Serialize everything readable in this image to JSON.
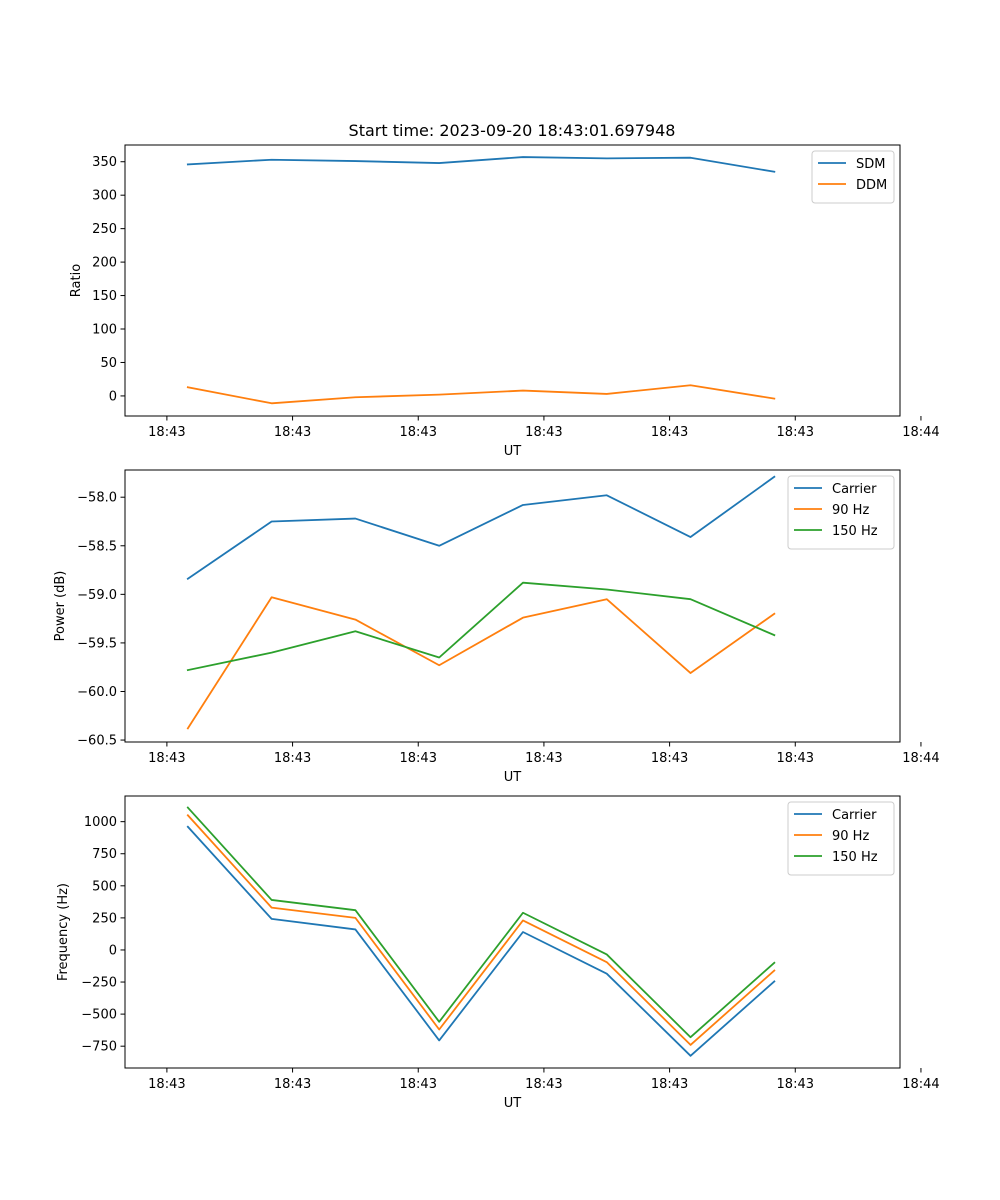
{
  "title": "Start time: 2023-09-20 18:43:01.697948",
  "colors": {
    "series1": "#1f77b4",
    "series2": "#ff7f0e",
    "series3": "#2ca02c"
  },
  "chart_data": [
    {
      "type": "line",
      "title": "Start time: 2023-09-20 18:43:01.697948",
      "xlabel": "UT",
      "ylabel": "Ratio",
      "xlim": [
        -0.5,
        8.75
      ],
      "ylim": [
        -30,
        375
      ],
      "x": [
        0.25,
        1.25,
        2.25,
        3.25,
        4.25,
        5.25,
        6.25,
        7.25
      ],
      "xticks": [
        0,
        1.5,
        3,
        4.5,
        6,
        7.5,
        9
      ],
      "xtick_labels": [
        "18:43",
        "18:43",
        "18:43",
        "18:43",
        "18:43",
        "18:43",
        "18:44"
      ],
      "yticks": [
        0,
        50,
        100,
        150,
        200,
        250,
        300,
        350
      ],
      "ytick_labels": [
        "0",
        "50",
        "100",
        "150",
        "200",
        "250",
        "300",
        "350"
      ],
      "legend_position": "top-right",
      "series": [
        {
          "name": "SDM",
          "values": [
            346,
            353,
            351,
            348,
            357,
            355,
            356,
            335
          ]
        },
        {
          "name": "DDM",
          "values": [
            13,
            -11,
            -2,
            2,
            8,
            3,
            16,
            -4
          ]
        }
      ]
    },
    {
      "type": "line",
      "title": "",
      "xlabel": "UT",
      "ylabel": "Power (dB)",
      "xlim": [
        -0.5,
        8.75
      ],
      "ylim": [
        -60.52,
        -57.72
      ],
      "x": [
        0.25,
        1.25,
        2.25,
        3.25,
        4.25,
        5.25,
        6.25,
        7.25
      ],
      "xticks": [
        0,
        1.5,
        3,
        4.5,
        6,
        7.5,
        9
      ],
      "xtick_labels": [
        "18:43",
        "18:43",
        "18:43",
        "18:43",
        "18:43",
        "18:43",
        "18:44"
      ],
      "yticks": [
        -60.5,
        -60.0,
        -59.5,
        -59.0,
        -58.5,
        -58.0
      ],
      "ytick_labels": [
        "−60.5",
        "−60.0",
        "−59.5",
        "−59.0",
        "−58.5",
        "−58.0"
      ],
      "legend_position": "top-right",
      "series": [
        {
          "name": "Carrier",
          "values": [
            -58.84,
            -58.25,
            -58.22,
            -58.5,
            -58.08,
            -57.98,
            -58.41,
            -57.79
          ]
        },
        {
          "name": "90 Hz",
          "values": [
            -60.38,
            -59.03,
            -59.26,
            -59.73,
            -59.24,
            -59.05,
            -59.81,
            -59.2
          ]
        },
        {
          "name": "150 Hz",
          "values": [
            -59.78,
            -59.6,
            -59.38,
            -59.65,
            -58.88,
            -58.95,
            -59.05,
            -59.42
          ]
        }
      ]
    },
    {
      "type": "line",
      "title": "",
      "xlabel": "UT",
      "ylabel": "Frequency (Hz)",
      "xlim": [
        -0.5,
        8.75
      ],
      "ylim": [
        -920,
        1200
      ],
      "x": [
        0.25,
        1.25,
        2.25,
        3.25,
        4.25,
        5.25,
        6.25,
        7.25
      ],
      "xticks": [
        0,
        1.5,
        3,
        4.5,
        6,
        7.5,
        9
      ],
      "xtick_labels": [
        "18:43",
        "18:43",
        "18:43",
        "18:43",
        "18:43",
        "18:43",
        "18:44"
      ],
      "yticks": [
        -750,
        -500,
        -250,
        0,
        250,
        500,
        750,
        1000
      ],
      "ytick_labels": [
        "−750",
        "−500",
        "−250",
        "0",
        "250",
        "500",
        "750",
        "1000"
      ],
      "legend_position": "top-right",
      "series": [
        {
          "name": "Carrier",
          "values": [
            960,
            242,
            160,
            -705,
            140,
            -185,
            -825,
            -245
          ]
        },
        {
          "name": "90 Hz",
          "values": [
            1050,
            330,
            250,
            -620,
            230,
            -95,
            -740,
            -160
          ]
        },
        {
          "name": "150 Hz",
          "values": [
            1110,
            390,
            310,
            -560,
            290,
            -35,
            -680,
            -100
          ]
        }
      ]
    }
  ]
}
